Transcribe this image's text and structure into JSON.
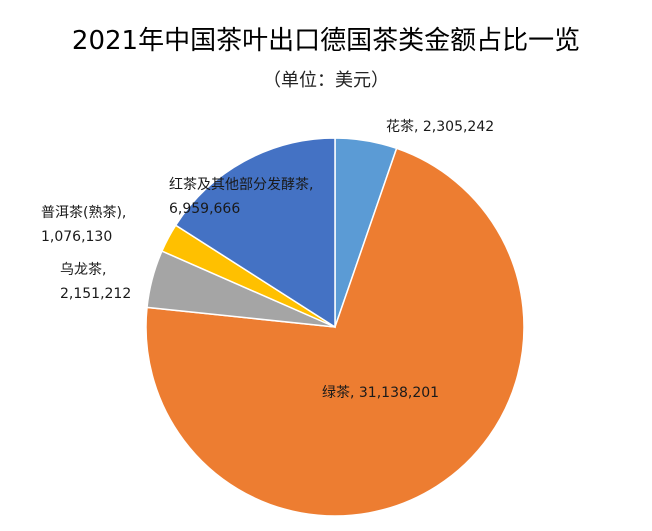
{
  "chart_data": {
    "type": "pie",
    "title": "2021年中国茶叶出口德国茶类金额占比一览",
    "subtitle": "（单位：美元）",
    "start_angle_deg": 0,
    "direction": "clockwise",
    "colors": [
      "#5b9bd5",
      "#ed7d31",
      "#a5a5a5",
      "#ffc000",
      "#4472c4"
    ],
    "slices": [
      {
        "category": "花茶",
        "value": 2305242,
        "value_text": "2,305,242",
        "color": "#5b9bd5",
        "label_lines": [
          "花茶, 2,305,242"
        ]
      },
      {
        "category": "绿茶",
        "value": 31138201,
        "value_text": "31,138,201",
        "color": "#ed7d31",
        "label_lines": [
          "绿茶, 31,138,201"
        ]
      },
      {
        "category": "乌龙茶",
        "value": 2151212,
        "value_text": "2,151,212",
        "color": "#a5a5a5",
        "label_lines": [
          "乌龙茶,",
          "2,151,212"
        ]
      },
      {
        "category": "普洱茶(熟茶)",
        "value": 1076130,
        "value_text": "1,076,130",
        "color": "#ffc000",
        "label_lines": [
          "普洱茶(熟茶),",
          "1,076,130"
        ]
      },
      {
        "category": "红茶及其他部分发酵茶",
        "value": 6959666,
        "value_text": "6,959,666",
        "color": "#4472c4",
        "label_lines": [
          "红茶及其他部分发酵茶,",
          "6,959,666"
        ]
      }
    ]
  }
}
